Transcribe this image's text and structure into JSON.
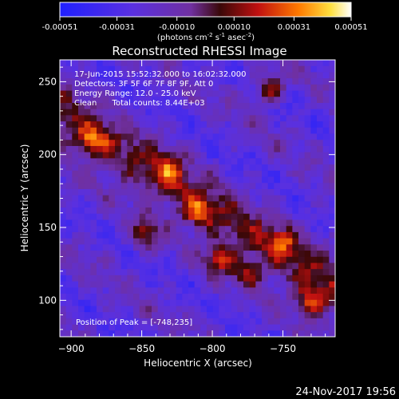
{
  "chart_data": {
    "type": "heatmap",
    "title": "Reconstructed RHESSI Image",
    "xlabel": "Heliocentric X (arcsec)",
    "ylabel": "Heliocentric Y (arcsec)",
    "xlim": [
      -908,
      -713
    ],
    "ylim": [
      75,
      265
    ],
    "xticks": [
      -900,
      -850,
      -800,
      -750
    ],
    "yticks": [
      100,
      150,
      200,
      250
    ],
    "colorbar": {
      "ticks": [
        "-0.00051",
        "-0.00031",
        "-0.00010",
        "0.00010",
        "0.00031",
        "0.00051"
      ],
      "tick_values": [
        -0.00051,
        -0.00031,
        -0.0001,
        0.0001,
        0.00031,
        0.00051
      ],
      "range": [
        -0.00051,
        0.00051
      ],
      "unit_parts": {
        "a": "(photons cm",
        "b": "-2",
        "c": " s",
        "d": "-1",
        "e": " asec",
        "f": "-2",
        "g": ")"
      }
    },
    "annotations": {
      "time": "17-Jun-2015 15:52:32.000 to 16:02:32.000",
      "detectors": "Detectors: 3F 5F 6F 7F 8F 9F, Att 0",
      "energy": "Energy Range: 12.0 - 25.0 keV",
      "clean": "Clean      Total counts: 8.44E+03",
      "peak": "Position of Peak = [-748,235]"
    },
    "peak": [
      -748,
      235
    ],
    "bright_sources": [
      {
        "x": -760,
        "y": 245,
        "value": 0.00051
      },
      {
        "x": -885,
        "y": 210,
        "value": 0.0004
      },
      {
        "x": -830,
        "y": 190,
        "value": 0.00042
      },
      {
        "x": -848,
        "y": 145,
        "value": 0.00045
      },
      {
        "x": -810,
        "y": 160,
        "value": 0.0004
      },
      {
        "x": -795,
        "y": 128,
        "value": 0.00048
      },
      {
        "x": -775,
        "y": 120,
        "value": 0.0004
      },
      {
        "x": -730,
        "y": 100,
        "value": 0.0005
      },
      {
        "x": -750,
        "y": 140,
        "value": 0.00035
      }
    ]
  },
  "footer_timestamp": "24-Nov-2017 19:56"
}
